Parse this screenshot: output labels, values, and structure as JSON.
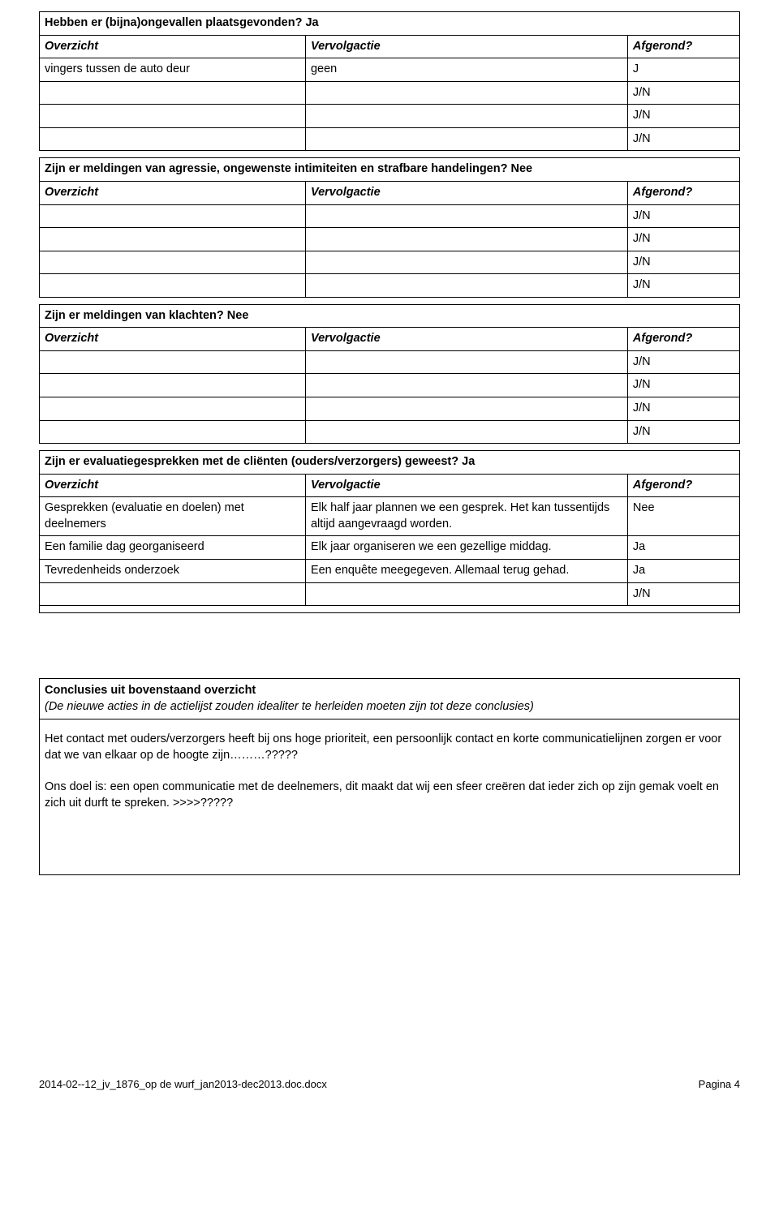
{
  "colors": {
    "text": "#000000",
    "border": "#000000",
    "background": "#ffffff"
  },
  "typography": {
    "font_family": "Arial",
    "body_size_pt": 11,
    "footer_size_pt": 10
  },
  "sections": {
    "s1": {
      "title": "Hebben er (bijna)ongevallen plaatsgevonden? Ja",
      "h_overzicht": "Overzicht",
      "h_vervolg": "Vervolgactie",
      "h_afgerond": "Afgerond?",
      "rows": [
        {
          "c1": "vingers tussen de auto deur",
          "c2": "geen",
          "c3": "J"
        },
        {
          "c1": "",
          "c2": "",
          "c3": "J/N"
        },
        {
          "c1": "",
          "c2": "",
          "c3": "J/N"
        },
        {
          "c1": "",
          "c2": "",
          "c3": "J/N"
        }
      ]
    },
    "s2": {
      "title": "Zijn er meldingen van agressie, ongewenste intimiteiten en strafbare handelingen? Nee",
      "h_overzicht": "Overzicht",
      "h_vervolg": "Vervolgactie",
      "h_afgerond": "Afgerond?",
      "rows": [
        {
          "c1": "",
          "c2": "",
          "c3": "J/N"
        },
        {
          "c1": "",
          "c2": "",
          "c3": "J/N"
        },
        {
          "c1": "",
          "c2": "",
          "c3": "J/N"
        },
        {
          "c1": "",
          "c2": "",
          "c3": "J/N"
        }
      ]
    },
    "s3": {
      "title": "Zijn er meldingen van klachten? Nee",
      "h_overzicht": "Overzicht",
      "h_vervolg": "Vervolgactie",
      "h_afgerond": "Afgerond?",
      "rows": [
        {
          "c1": "",
          "c2": "",
          "c3": "J/N"
        },
        {
          "c1": "",
          "c2": "",
          "c3": "J/N"
        },
        {
          "c1": "",
          "c2": "",
          "c3": "J/N"
        },
        {
          "c1": "",
          "c2": "",
          "c3": "J/N"
        }
      ]
    },
    "s4": {
      "title": "Zijn er evaluatiegesprekken met de cliënten (ouders/verzorgers) geweest? Ja",
      "h_overzicht": "Overzicht",
      "h_vervolg": "Vervolgactie",
      "h_afgerond": "Afgerond?",
      "rows": [
        {
          "c1": "Gesprekken (evaluatie en doelen) met deelnemers",
          "c2": "Elk half jaar plannen we een gesprek. Het kan tussentijds altijd aangevraagd worden.",
          "c3": "Nee"
        },
        {
          "c1": "Een familie dag georganiseerd",
          "c2": "Elk jaar organiseren we een gezellige middag.",
          "c3": "Ja"
        },
        {
          "c1": "Tevredenheids onderzoek",
          "c2": "Een enquête meegegeven. Allemaal terug gehad.",
          "c3": "Ja"
        },
        {
          "c1": "",
          "c2": "",
          "c3": "J/N"
        }
      ],
      "closer": ""
    }
  },
  "conclusion": {
    "title": "Conclusies uit bovenstaand overzicht",
    "subtitle": "(De nieuwe acties in de actielijst zouden idealiter te herleiden moeten zijn tot deze conclusies)",
    "p1": "Het contact met ouders/verzorgers heeft bij ons hoge prioriteit, een persoonlijk contact en korte communicatielijnen zorgen er voor dat we van elkaar op de hoogte zijn………?????",
    "p2": "Ons doel is: een open communicatie met de deelnemers, dit maakt dat wij een sfeer creëren dat ieder zich op zijn gemak voelt en zich uit durft te spreken.  >>>>?????"
  },
  "footer": {
    "left": "2014-02--12_jv_1876_op de wurf_jan2013-dec2013.doc.docx",
    "right": "Pagina 4"
  }
}
